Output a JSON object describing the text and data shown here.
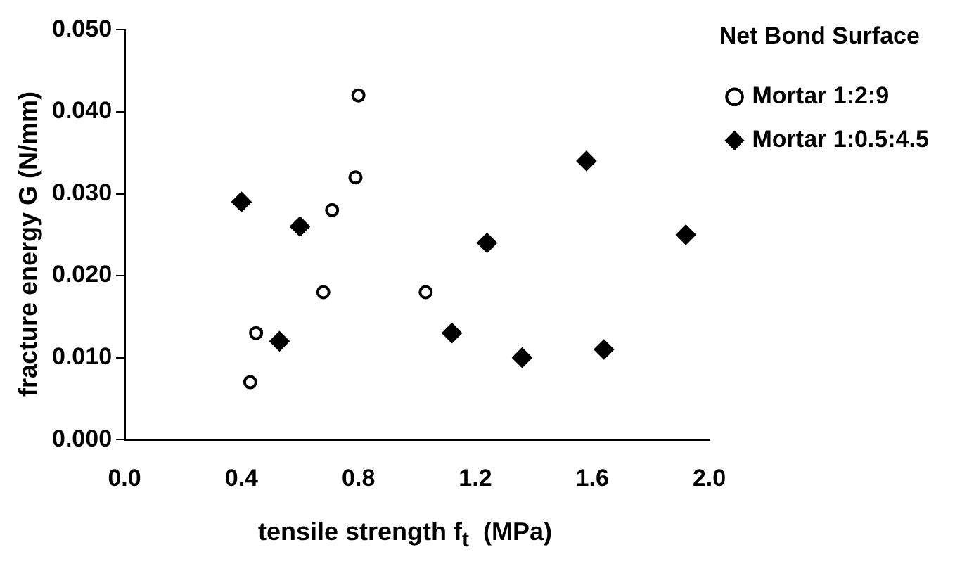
{
  "chart_data": {
    "type": "scatter",
    "xlabel": "tensile strength f$_{t}$  (MPa)",
    "ylabel": "fracture energy G  (N/mm)",
    "legend_title": "Net Bond Surface",
    "legend": "right",
    "grid": false,
    "xlim": [
      0,
      2
    ],
    "xticks": [
      {
        "value": 0,
        "label": "0.0"
      },
      0.4,
      0.8,
      1.2,
      1.6,
      {
        "value": 2,
        "label": "2.0"
      }
    ],
    "ylim": [
      0,
      0.05
    ],
    "yticks": [
      {
        "value": 0,
        "label": "0.000"
      },
      {
        "value": 0.01,
        "label": "0.010"
      },
      {
        "value": 0.02,
        "label": "0.020"
      },
      {
        "value": 0.03,
        "label": "0.030"
      },
      {
        "value": 0.04,
        "label": "0.040"
      },
      {
        "value": 0.05,
        "label": "0.050"
      }
    ],
    "series": [
      {
        "name": "Mortar 1:2:9",
        "color": "#000000",
        "marker": "circle",
        "x": [
          0.43,
          0.45,
          0.68,
          0.71,
          0.79,
          0.8,
          1.03
        ],
        "values": [
          0.007,
          0.013,
          0.018,
          0.028,
          0.032,
          0.042,
          0.018
        ]
      },
      {
        "name": "Mortar 1:0.5:4.5",
        "color": "#000000",
        "marker": "diamond",
        "x": [
          0.4,
          0.53,
          0.6,
          1.12,
          1.24,
          1.36,
          1.58,
          1.64,
          1.92
        ],
        "values": [
          0.029,
          0.012,
          0.026,
          0.013,
          0.024,
          0.01,
          0.034,
          0.011,
          0.025
        ]
      }
    ]
  }
}
